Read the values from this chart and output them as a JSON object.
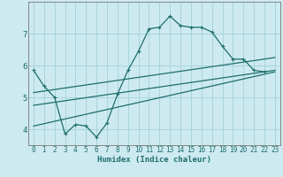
{
  "xlabel": "Humidex (Indice chaleur)",
  "background_color": "#cdeaf0",
  "grid_color": "#a8d5dc",
  "line_color": "#1e6e6e",
  "xlim": [
    -0.5,
    23.5
  ],
  "ylim": [
    3.5,
    8.0
  ],
  "yticks": [
    4,
    5,
    6,
    7
  ],
  "xticks": [
    0,
    1,
    2,
    3,
    4,
    5,
    6,
    7,
    8,
    9,
    10,
    11,
    12,
    13,
    14,
    15,
    16,
    17,
    18,
    19,
    20,
    21,
    22,
    23
  ],
  "line1_x": [
    0,
    1,
    2,
    3,
    4,
    5,
    6,
    7,
    8,
    9,
    10,
    11,
    12,
    13,
    14,
    15,
    16,
    17,
    18,
    19,
    20,
    21,
    22
  ],
  "line1_y": [
    5.85,
    5.35,
    5.0,
    3.85,
    4.15,
    4.1,
    3.75,
    4.2,
    5.1,
    5.85,
    6.45,
    7.15,
    7.2,
    7.55,
    7.25,
    7.2,
    7.2,
    7.05,
    6.6,
    6.2,
    6.2,
    5.85,
    5.8
  ],
  "line2_x": [
    0,
    23
  ],
  "line2_y": [
    5.15,
    6.25
  ],
  "line3_x": [
    0,
    23
  ],
  "line3_y": [
    4.75,
    5.85
  ],
  "line4_x": [
    0,
    23
  ],
  "line4_y": [
    4.1,
    5.8
  ]
}
